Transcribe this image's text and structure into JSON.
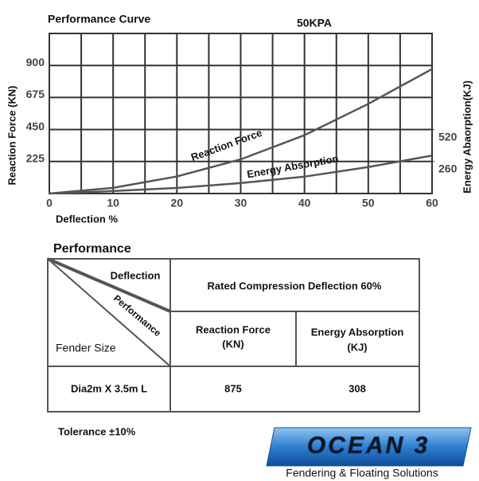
{
  "chart_data": {
    "type": "line",
    "title": "Performance Curve",
    "subtitle": "50KPA",
    "x_label": "Deflection %",
    "y_label": "Reaction Force (KN)",
    "y2_label": "Energy Abaorption(KJ)",
    "x": [
      0,
      10,
      20,
      30,
      40,
      50,
      60
    ],
    "series": [
      {
        "name": "Reaction Force",
        "color": "#555555",
        "values": [
          0,
          40,
          120,
          240,
          410,
          630,
          875
        ]
      },
      {
        "name": "Energy Absorption",
        "color": "#555555",
        "axis": "y2",
        "values": [
          0,
          20,
          45,
          85,
          137,
          215,
          308
        ]
      }
    ],
    "xlim": [
      0,
      60
    ],
    "xticks": [
      0,
      10,
      20,
      30,
      40,
      50,
      60
    ],
    "ylim": [
      0,
      1125
    ],
    "yticks": [
      225,
      450,
      675,
      900
    ],
    "y2lim": [
      0,
      1300
    ],
    "y2ticks": [
      260,
      520
    ],
    "grid": true
  },
  "table": {
    "title": "Performance",
    "corner": [
      "Deflection",
      "Performance",
      "Fender Size"
    ],
    "span_header": "Rated Compression Deflection 60%",
    "headers": [
      [
        "Reaction Force",
        "(KN)"
      ],
      [
        "Energy Absorption",
        "(KJ)"
      ]
    ],
    "rows": [
      [
        "Dia2m X 3.5m L",
        875,
        308
      ]
    ],
    "note": "Tolerance ±10%"
  },
  "logo": {
    "name": "OCEAN 3",
    "tagline": "Fendering & Floating Solutions"
  }
}
